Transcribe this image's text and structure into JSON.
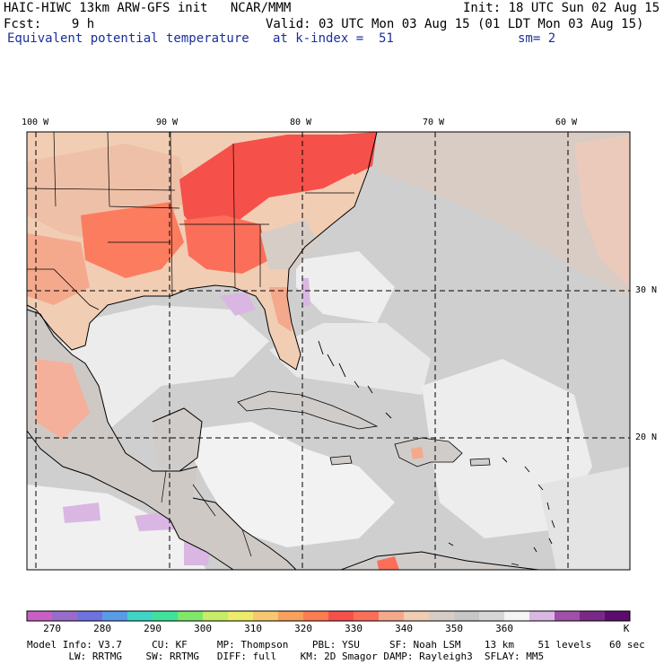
{
  "header": {
    "line1_left": "HAIC-HIWC 13km ARW-GFS init   NCAR/MMM",
    "line1_right": "Init: 18 UTC Sun 02 Aug 15",
    "line2_left": "Fcst:    9 h",
    "line2_right": "Valid: 03 UTC Mon 03 Aug 15 (01 LDT Mon 03 Aug 15)",
    "line3_field": "Equivalent potential temperature",
    "line3_level": "at k-index =  51",
    "line3_smooth": "sm= 2"
  },
  "map": {
    "lon_ticks": [
      "100 W",
      "90 W",
      "80 W",
      "70 W",
      "60 W"
    ],
    "lat_ticks": [
      "30 N",
      "20 N"
    ],
    "colors": {
      "land_border": "#000000",
      "grid": "#000000",
      "sea_base": "#cfcfcf"
    }
  },
  "colorbar": {
    "labels": [
      "270",
      "280",
      "290",
      "300",
      "310",
      "320",
      "330",
      "340",
      "350",
      "360",
      "K"
    ],
    "colors": [
      "#c95fc4",
      "#9a6cc9",
      "#6f72e0",
      "#5a9be8",
      "#3fd4c8",
      "#3fe29a",
      "#7fe86a",
      "#c6ec68",
      "#ecec6a",
      "#f7c870",
      "#f9a05c",
      "#fb7c50",
      "#f6504a",
      "#fb6f5a",
      "#f4a98c",
      "#f1cdb4",
      "#d7cdc7",
      "#c7c7c7",
      "#d6d6d6",
      "#f4f4f4",
      "#d9b7e2",
      "#a050a8",
      "#7a2a86",
      "#5c0c6c"
    ]
  },
  "footer": {
    "line1": "Model Info: V3.7     CU: KF     MP: Thompson    PBL: YSU     SF: Noah LSM    13 km    51 levels   60 sec",
    "line2": "       LW: RRTMG    SW: RRTMG   DIFF: full    KM: 2D Smagor DAMP: Rayleigh3  SFLAY: MM5"
  }
}
